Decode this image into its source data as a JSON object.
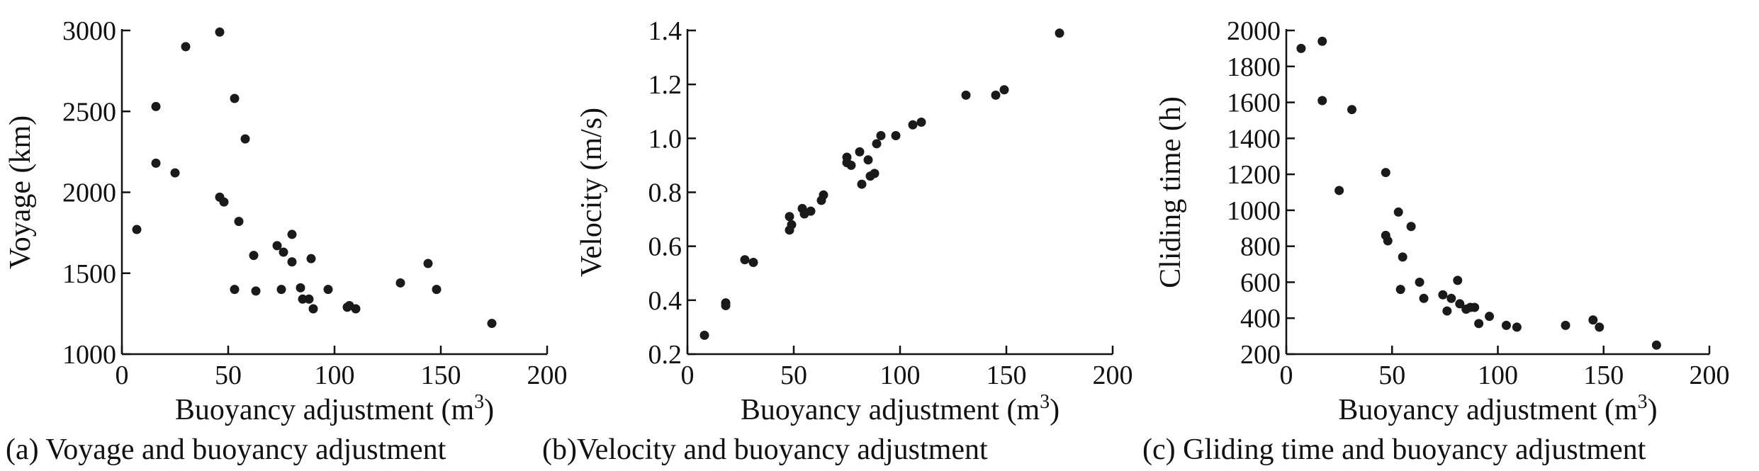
{
  "chart_data": [
    {
      "type": "scatter",
      "caption": "(a) Voyage and buoyancy adjustment",
      "xlabel": "Buoyancy adjustment (m",
      "xlabel_sup": "3",
      "xlabel_close": ")",
      "ylabel": "Voyage (km)",
      "xlim": [
        0,
        200
      ],
      "ylim": [
        1000,
        3000
      ],
      "x_ticks": [
        "0",
        "50",
        "100",
        "150",
        "200"
      ],
      "y_ticks": [
        "1000",
        "1500",
        "2000",
        "2500",
        "3000"
      ],
      "grid": false,
      "points": [
        [
          7,
          1770
        ],
        [
          16,
          2530
        ],
        [
          16,
          2180
        ],
        [
          25,
          2120
        ],
        [
          30,
          2900
        ],
        [
          46,
          2990
        ],
        [
          46,
          1970
        ],
        [
          48,
          1940
        ],
        [
          53,
          2580
        ],
        [
          53,
          1400
        ],
        [
          55,
          1820
        ],
        [
          58,
          2330
        ],
        [
          62,
          1610
        ],
        [
          63,
          1390
        ],
        [
          73,
          1670
        ],
        [
          75,
          1400
        ],
        [
          76,
          1630
        ],
        [
          80,
          1740
        ],
        [
          80,
          1570
        ],
        [
          84,
          1410
        ],
        [
          85,
          1340
        ],
        [
          88,
          1340
        ],
        [
          89,
          1590
        ],
        [
          90,
          1280
        ],
        [
          97,
          1400
        ],
        [
          106,
          1290
        ],
        [
          107,
          1300
        ],
        [
          110,
          1280
        ],
        [
          131,
          1440
        ],
        [
          144,
          1560
        ],
        [
          148,
          1400
        ],
        [
          174,
          1190
        ]
      ]
    },
    {
      "type": "scatter",
      "caption": "(b)Velocity and buoyancy adjustment",
      "xlabel": "Buoyancy adjustment (m",
      "xlabel_sup": "3",
      "xlabel_close": ")",
      "ylabel": "Velocity (m/s)",
      "xlim": [
        0,
        200
      ],
      "ylim": [
        0.2,
        1.4
      ],
      "x_ticks": [
        "0",
        "50",
        "100",
        "150",
        "200"
      ],
      "y_ticks": [
        "0.2",
        "0.4",
        "0.6",
        "0.8",
        "1.0",
        "1.2",
        "1.4"
      ],
      "grid": false,
      "points": [
        [
          8,
          0.27
        ],
        [
          18,
          0.39
        ],
        [
          18,
          0.38
        ],
        [
          27,
          0.55
        ],
        [
          31,
          0.54
        ],
        [
          48,
          0.71
        ],
        [
          48,
          0.66
        ],
        [
          49,
          0.68
        ],
        [
          54,
          0.74
        ],
        [
          55,
          0.72
        ],
        [
          58,
          0.73
        ],
        [
          63,
          0.77
        ],
        [
          64,
          0.79
        ],
        [
          75,
          0.91
        ],
        [
          75,
          0.93
        ],
        [
          77,
          0.9
        ],
        [
          81,
          0.95
        ],
        [
          82,
          0.83
        ],
        [
          85,
          0.92
        ],
        [
          86,
          0.86
        ],
        [
          88,
          0.87
        ],
        [
          89,
          0.98
        ],
        [
          91,
          1.01
        ],
        [
          98,
          1.01
        ],
        [
          106,
          1.05
        ],
        [
          110,
          1.06
        ],
        [
          131,
          1.16
        ],
        [
          145,
          1.16
        ],
        [
          149,
          1.18
        ],
        [
          175,
          1.39
        ]
      ]
    },
    {
      "type": "scatter",
      "caption": "(c) Gliding time and buoyancy adjustment",
      "xlabel": "Buoyancy adjustment (m",
      "xlabel_sup": "3",
      "xlabel_close": ")",
      "ylabel": "Cliding time (h)",
      "xlim": [
        0,
        200
      ],
      "ylim": [
        200,
        2000
      ],
      "x_ticks": [
        "0",
        "50",
        "100",
        "150",
        "200"
      ],
      "y_ticks": [
        "200",
        "400",
        "600",
        "800",
        "1000",
        "1200",
        "1400",
        "1600",
        "1800",
        "2000"
      ],
      "grid": false,
      "points": [
        [
          7,
          1900
        ],
        [
          17,
          1940
        ],
        [
          17,
          1610
        ],
        [
          25,
          1110
        ],
        [
          31,
          1560
        ],
        [
          47,
          1210
        ],
        [
          47,
          860
        ],
        [
          48,
          830
        ],
        [
          53,
          990
        ],
        [
          54,
          560
        ],
        [
          55,
          740
        ],
        [
          59,
          910
        ],
        [
          63,
          600
        ],
        [
          65,
          510
        ],
        [
          74,
          530
        ],
        [
          76,
          440
        ],
        [
          78,
          510
        ],
        [
          81,
          610
        ],
        [
          82,
          480
        ],
        [
          85,
          450
        ],
        [
          87,
          460
        ],
        [
          89,
          460
        ],
        [
          91,
          370
        ],
        [
          96,
          410
        ],
        [
          104,
          360
        ],
        [
          109,
          350
        ],
        [
          132,
          360
        ],
        [
          145,
          390
        ],
        [
          148,
          350
        ],
        [
          175,
          250
        ]
      ]
    }
  ]
}
